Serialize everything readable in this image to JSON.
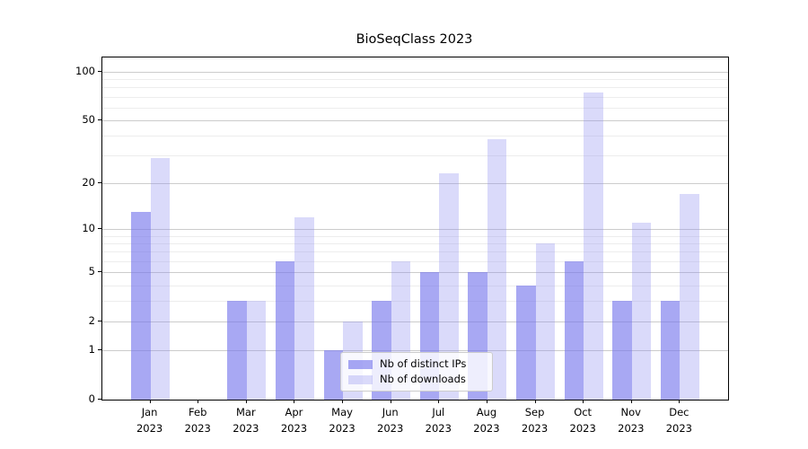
{
  "chart_data": {
    "type": "bar",
    "title": "BioSeqClass 2023",
    "categories": [
      "Jan",
      "Feb",
      "Mar",
      "Apr",
      "May",
      "Jun",
      "Jul",
      "Aug",
      "Sep",
      "Oct",
      "Nov",
      "Dec"
    ],
    "category_year": "2023",
    "series": [
      {
        "name": "Nb of distinct IPs",
        "color": "#7373eb",
        "opacity": 0.62,
        "values": [
          13,
          0,
          3,
          6,
          1,
          3,
          5,
          5,
          4,
          6,
          3,
          3
        ]
      },
      {
        "name": "Nb of downloads",
        "color": "#8c8cf0",
        "opacity": 0.32,
        "values": [
          29,
          0,
          3,
          12,
          2,
          6,
          23,
          38,
          8,
          74,
          11,
          17
        ]
      }
    ],
    "yscale": "log1p",
    "ylim": [
      0,
      122
    ],
    "yticks": [
      0,
      1,
      2,
      5,
      10,
      20,
      50,
      100
    ],
    "minor_gridlines": [
      3,
      4,
      6,
      7,
      8,
      9,
      30,
      40,
      60,
      70,
      80,
      90
    ],
    "grid": true,
    "legend_position": "inside lower-right",
    "major_grid_color": "#cccccc",
    "minor_grid_color": "#ededed",
    "axis_color": "#000000"
  }
}
